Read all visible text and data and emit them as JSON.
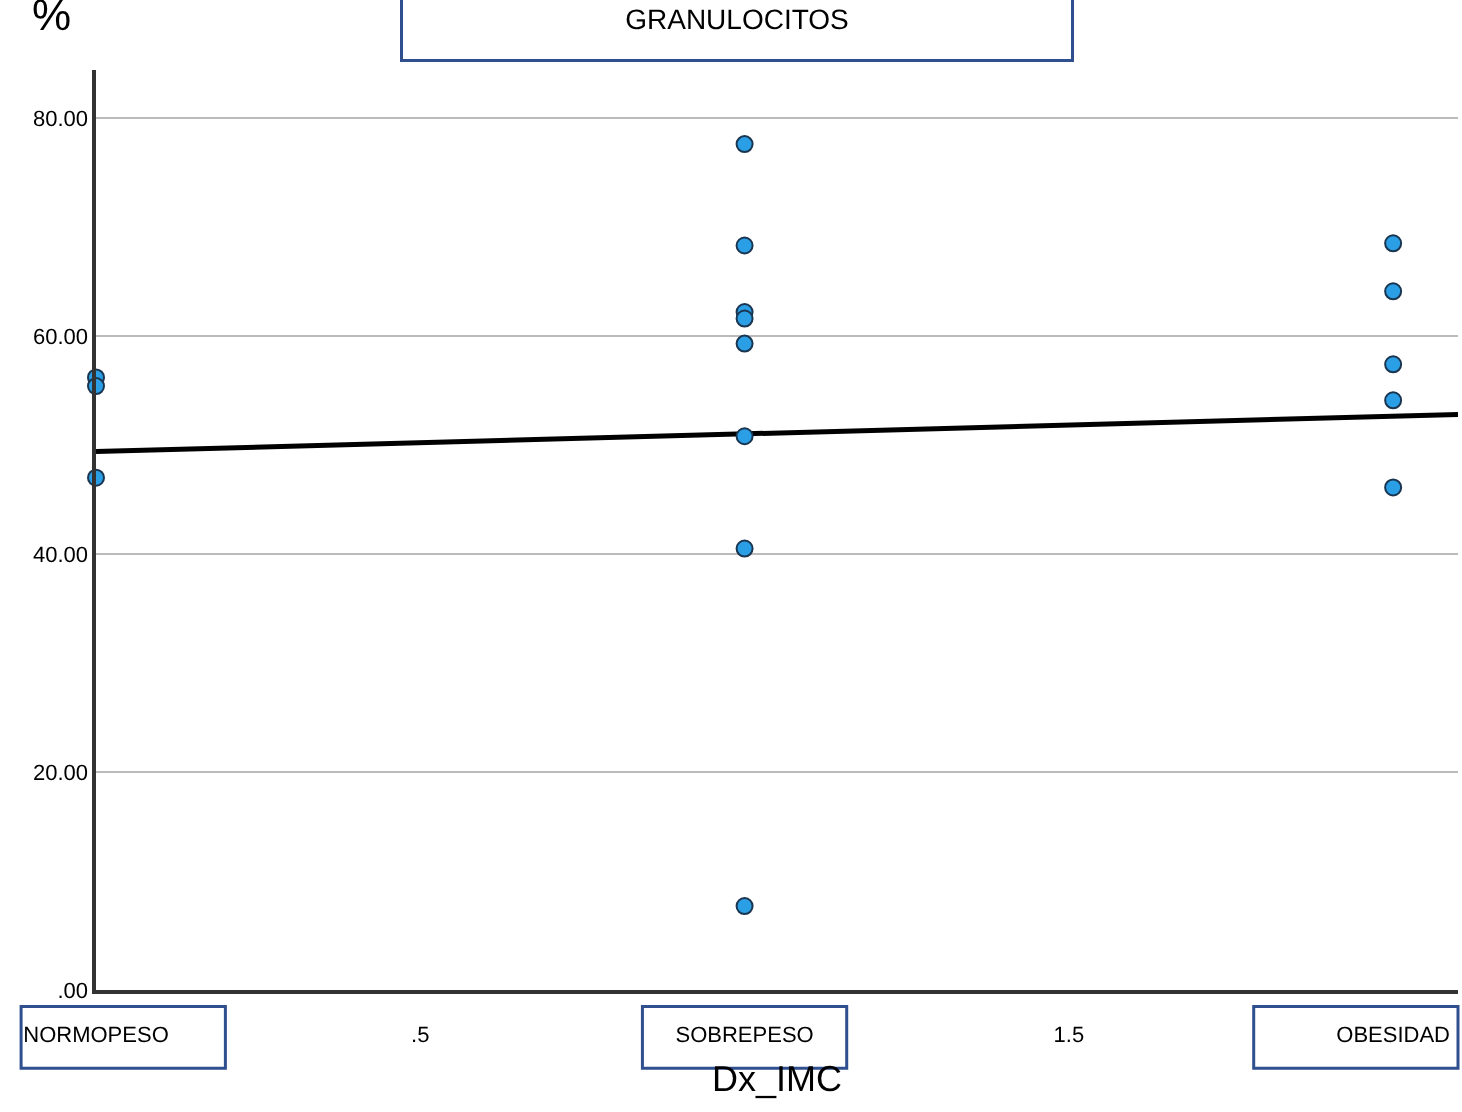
{
  "chart_data": {
    "type": "scatter",
    "title": "GRANULOCITOS",
    "ylabel": "%",
    "xlabel": "Dx_IMC",
    "series": [
      {
        "color": "#2b9fe6",
        "x": [
          0,
          0,
          0,
          1,
          1,
          1,
          1,
          1,
          1,
          1,
          1,
          2,
          2,
          2,
          2,
          2
        ],
        "values": [
          56.2,
          55.4,
          47.0,
          77.6,
          68.3,
          62.2,
          61.6,
          59.3,
          50.8,
          40.5,
          7.7,
          68.5,
          64.1,
          57.4,
          54.1,
          46.1
        ]
      },
      {
        "type": "line",
        "marker": "none",
        "color": "#000000",
        "x": [
          0,
          2.1
        ],
        "values": [
          49.4,
          52.8
        ]
      }
    ],
    "xlim": [
      0,
      2.1
    ],
    "xticks": [
      {
        "value": 0,
        "label": "NORMOPESO"
      },
      {
        "value": 0.5,
        "label": ".5"
      },
      {
        "value": 1,
        "label": "SOBREPESO"
      },
      {
        "value": 1.5,
        "label": "1.5"
      },
      {
        "value": 2,
        "label": "OBESIDAD"
      }
    ],
    "ylim": [
      0,
      84.4
    ],
    "yticks": [
      {
        "value": 0,
        "label": ".00"
      },
      {
        "value": 20,
        "label": "20.00"
      },
      {
        "value": 40,
        "label": "40.00"
      },
      {
        "value": 60,
        "label": "60.00"
      },
      {
        "value": 80,
        "label": "80.00"
      }
    ],
    "grid": "y",
    "marker": "circle",
    "line_style": "solid"
  }
}
